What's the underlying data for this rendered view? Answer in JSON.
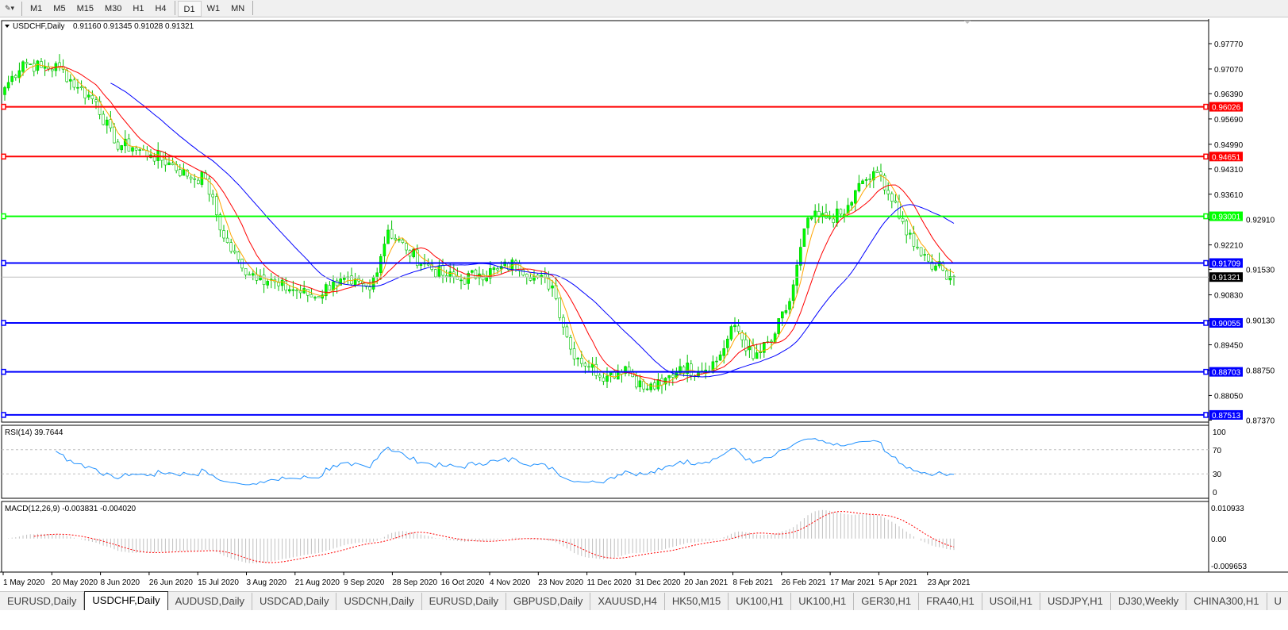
{
  "toolbar": {
    "timeframes": [
      "M1",
      "M5",
      "M15",
      "M30",
      "H1",
      "H4",
      "D1",
      "W1",
      "MN"
    ],
    "active": "D1"
  },
  "chart_header": {
    "symbol": "USDCHF,Daily",
    "ohlc": "0.91160 0.91345 0.91028 0.91321"
  },
  "rsi_label": "RSI(14) 39.7644",
  "macd_label": "MACD(12,26,9) -0.003831 -0.004020",
  "colors": {
    "bull": "#00ff00",
    "bear": "#ffffff",
    "ma_fast": "#ffa500",
    "ma_mid": "#ff0000",
    "ma_slow": "#0000ff",
    "rsi": "#1e90ff",
    "macd_signal": "#ff0000",
    "macd_hist": "#c0c0c0"
  },
  "chart_data": {
    "type": "candlestick",
    "symbol": "USDCHF",
    "timeframe": "Daily",
    "ylim": [
      0.87314,
      0.98406
    ],
    "y_ticks": [
      "0.97770",
      "0.97070",
      "0.96390",
      "0.95690",
      "0.94990",
      "0.94310",
      "0.93610",
      "0.92910",
      "0.92210",
      "0.91530",
      "0.90830",
      "0.90130",
      "0.89450",
      "0.88750",
      "0.88050",
      "0.87370"
    ],
    "x_ticks": [
      "1 May 2020",
      "20 May 2020",
      "8 Jun 2020",
      "26 Jun 2020",
      "15 Jul 2020",
      "3 Aug 2020",
      "21 Aug 2020",
      "9 Sep 2020",
      "28 Sep 2020",
      "16 Oct 2020",
      "4 Nov 2020",
      "23 Nov 2020",
      "11 Dec 2020",
      "31 Dec 2020",
      "20 Jan 2021",
      "8 Feb 2021",
      "26 Feb 2021",
      "17 Mar 2021",
      "5 Apr 2021",
      "23 Apr 2021"
    ],
    "weekly_closes": [
      0.9656,
      0.9727,
      0.9711,
      0.9711,
      0.9656,
      0.9617,
      0.9503,
      0.949,
      0.947,
      0.9448,
      0.9411,
      0.9404,
      0.924,
      0.9157,
      0.9135,
      0.9108,
      0.9095,
      0.9076,
      0.9119,
      0.9113,
      0.9097,
      0.9262,
      0.9207,
      0.9168,
      0.9137,
      0.9124,
      0.9141,
      0.9152,
      0.917,
      0.9135,
      0.9108,
      0.8933,
      0.8885,
      0.8859,
      0.8885,
      0.8823,
      0.8834,
      0.8885,
      0.8872,
      0.89,
      0.8999,
      0.8907,
      0.8955,
      0.9065,
      0.9295,
      0.9295,
      0.9306,
      0.9398,
      0.9415,
      0.9295,
      0.9214,
      0.9163,
      0.91321
    ],
    "last_price": "0.91321",
    "levels": [
      {
        "price": "0.96026",
        "color": "#ff0000"
      },
      {
        "price": "0.94651",
        "color": "#ff0000"
      },
      {
        "price": "0.93001",
        "color": "#00ff00"
      },
      {
        "price": "0.91709",
        "color": "#0000ff"
      },
      {
        "price": "0.90055",
        "color": "#0000ff"
      },
      {
        "price": "0.88703",
        "color": "#0000ff"
      },
      {
        "price": "0.87513",
        "color": "#0000ff"
      }
    ],
    "rsi": {
      "ticks": [
        "100",
        "70",
        "30",
        "0"
      ],
      "levels": [
        70,
        30
      ],
      "value": 39.7644
    },
    "macd": {
      "ticks": [
        "0.010933",
        "0.00",
        "-0.009653"
      ],
      "ylim": [
        -0.009653,
        0.010933
      ]
    }
  },
  "tabs": [
    "EURUSD,Daily",
    "USDCHF,Daily",
    "AUDUSD,Daily",
    "USDCAD,Daily",
    "USDCNH,Daily",
    "EURUSD,Daily",
    "GBPUSD,Daily",
    "XAUUSD,H4",
    "HK50,M15",
    "UK100,H1",
    "UK100,H1",
    "GER30,H1",
    "FRA40,H1",
    "USOil,H1",
    "USDJPY,H1",
    "DJ30,Weekly",
    "CHINA300,H1",
    "U"
  ],
  "active_tab": "USDCHF,Daily"
}
